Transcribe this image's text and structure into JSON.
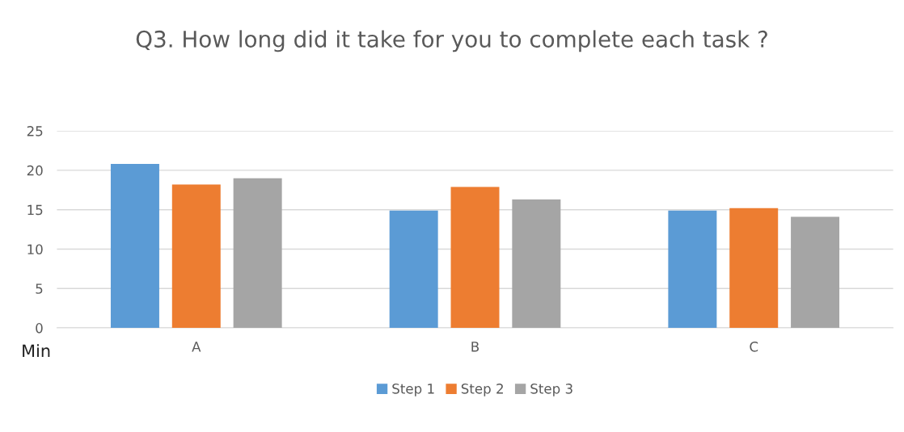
{
  "chart_data": {
    "type": "bar",
    "title": "Q3. How long did it take for you to complete each task ?",
    "ylabel": "Min",
    "categories": [
      "A",
      "B",
      "C"
    ],
    "series": [
      {
        "name": "Step 1",
        "color": "#5b9bd5",
        "values": [
          20.8,
          14.9,
          14.9
        ]
      },
      {
        "name": "Step 2",
        "color": "#ed7d31",
        "values": [
          18.2,
          17.9,
          15.2
        ]
      },
      {
        "name": "Step 3",
        "color": "#a5a5a5",
        "values": [
          19.0,
          16.3,
          14.1
        ]
      }
    ],
    "ylim": [
      0,
      25
    ],
    "yticks": [
      0,
      5,
      10,
      15,
      20,
      25
    ],
    "grid": "y",
    "legend": "bottom"
  }
}
